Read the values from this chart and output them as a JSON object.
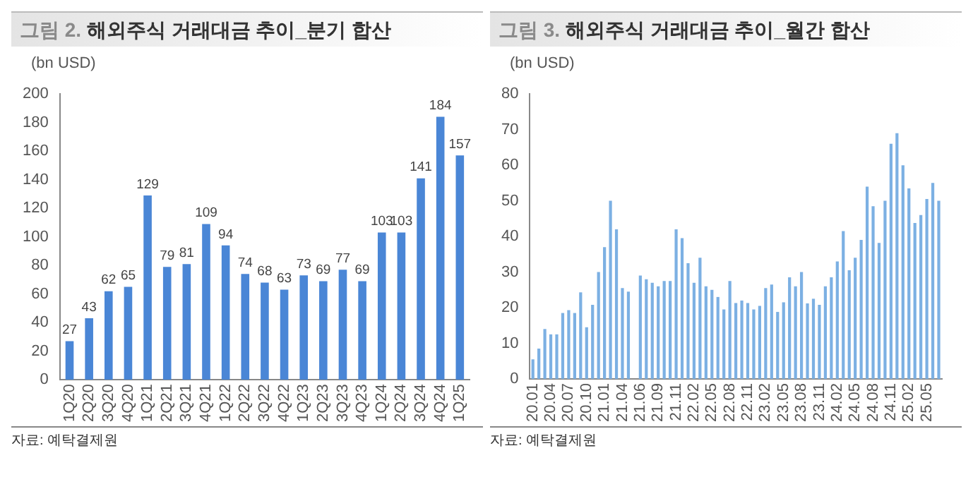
{
  "chart_data": [
    {
      "type": "bar",
      "title": "그림 2. 해외주식 거래대금 추이_분기 합산",
      "ylabel": "(bn USD)",
      "categories": [
        "1Q20",
        "2Q20",
        "3Q20",
        "4Q20",
        "1Q21",
        "2Q21",
        "3Q21",
        "4Q21",
        "1Q22",
        "2Q22",
        "3Q22",
        "4Q22",
        "1Q23",
        "2Q23",
        "3Q23",
        "4Q23",
        "1Q24",
        "2Q24",
        "3Q24",
        "4Q24",
        "1Q25"
      ],
      "values": [
        27,
        43,
        62,
        65,
        129,
        79,
        81,
        109,
        94,
        74,
        68,
        63,
        73,
        69,
        77,
        69,
        103,
        103,
        141,
        184,
        157
      ],
      "color": "#4a86d6",
      "data_labels": true,
      "ylim": [
        0,
        200
      ],
      "yticks": [
        0,
        20,
        40,
        60,
        80,
        100,
        120,
        140,
        160,
        180,
        200
      ],
      "grid": false,
      "legend": false,
      "annotations": [
        "자료: 예탁결제원"
      ]
    },
    {
      "type": "bar",
      "title": "그림 3. 해외주식 거래대금 추이_월간 합산",
      "ylabel": "(bn USD)",
      "categories": [
        "20.01",
        null,
        null,
        "20.04",
        null,
        null,
        "20.07",
        null,
        null,
        "20.10",
        null,
        null,
        "21.01",
        null,
        null,
        "21.04",
        null,
        null,
        "21.06",
        null,
        null,
        "21.09",
        null,
        null,
        "21.11",
        null,
        null,
        "22.02",
        null,
        null,
        "22.05",
        null,
        null,
        "22.08",
        null,
        null,
        "22.11",
        null,
        null,
        "23.02",
        null,
        null,
        "23.05",
        null,
        null,
        "23.08",
        null,
        null,
        "23.11",
        null,
        null,
        "24.02",
        null,
        null,
        "24.05",
        null,
        null,
        "24.08",
        null,
        null,
        "24.11",
        null,
        null,
        "25.02",
        null,
        null,
        "25.05",
        null,
        null
      ],
      "values": [
        5.5,
        8.5,
        14,
        12.5,
        12.5,
        18.5,
        19.3,
        18.5,
        24.3,
        14.5,
        20.8,
        30,
        37,
        50,
        42,
        25.5,
        24.5,
        null,
        29,
        28,
        27,
        26,
        27.5,
        27.5,
        42,
        39.5,
        32.5,
        27,
        34,
        26,
        25,
        23,
        19.5,
        27.5,
        21.3,
        22,
        21.3,
        19.5,
        20.5,
        25.5,
        26.5,
        18.8,
        21.5,
        28.5,
        26,
        30,
        21.2,
        22.5,
        20.8,
        26,
        28.5,
        33,
        41.5,
        30.5,
        34,
        39,
        54,
        48.5,
        38.2,
        50,
        66,
        69,
        60,
        53.5,
        43.8,
        46,
        50.5,
        55,
        50
      ],
      "color": "#7cb0e3",
      "ylim": [
        0,
        80
      ],
      "yticks": [
        0,
        10,
        20,
        30,
        40,
        50,
        60,
        70,
        80
      ],
      "grid": false,
      "legend": false,
      "annotations": [
        "자료: 예탁결제원"
      ]
    }
  ]
}
